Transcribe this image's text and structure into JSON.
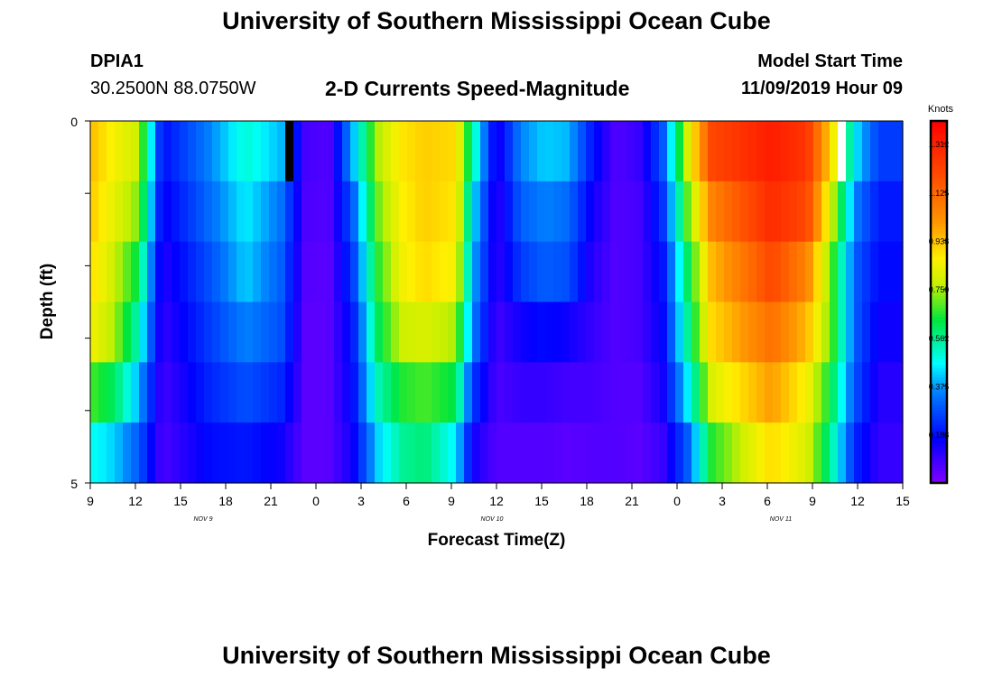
{
  "page": {
    "title_top": "University of Southern Mississippi Ocean Cube",
    "title_bottom": "University of Southern Mississippi Ocean Cube",
    "station_id": "DPIA1",
    "station_coords": "30.2500N 88.0750W",
    "plot_title": "2-D Currents Speed-Magnitude",
    "model_start_label": "Model Start Time",
    "model_start_value": "11/09/2019 Hour 09"
  },
  "chart_data": {
    "type": "heatmap",
    "title": "2-D Currents Speed-Magnitude",
    "xlabel": "Forecast Time(Z)",
    "ylabel": "Depth (ft)",
    "x_tick_labels": [
      "9",
      "12",
      "15",
      "18",
      "21",
      "0",
      "3",
      "6",
      "9",
      "12",
      "15",
      "18",
      "21",
      "0",
      "3",
      "6",
      "9",
      "12",
      "15"
    ],
    "date_labels": [
      {
        "text": "NOV  9",
        "at_tick": 2.5
      },
      {
        "text": "NOV  10",
        "at_tick": 8.9
      },
      {
        "text": "NOV  11",
        "at_tick": 15.3
      }
    ],
    "y_tick_labels": [
      "0",
      "5"
    ],
    "ylim": [
      0,
      5
    ],
    "colorbar": {
      "unit": "Knots",
      "min": 0,
      "max": 1.4,
      "tick_labels": [
        "1.312",
        "1.125",
        "0.938",
        "0.750",
        "0.562",
        "0.375",
        "0.188"
      ],
      "tick_values": [
        1.312,
        1.125,
        0.938,
        0.75,
        0.562,
        0.375,
        0.188
      ]
    },
    "depth_bands": 6,
    "knots": [
      {
        "t": 0,
        "v": [
          0.95,
          0.93,
          0.9,
          0.85,
          0.68,
          0.48
        ]
      },
      {
        "t": 1,
        "v": [
          0.85,
          0.82,
          0.78,
          0.75,
          0.6,
          0.42
        ]
      },
      {
        "t": 2,
        "v": [
          0.78,
          0.72,
          0.62,
          0.52,
          0.4,
          0.3
        ]
      },
      {
        "t": 3,
        "v": [
          0.18,
          0.15,
          0.12,
          0.1,
          0.08,
          0.07
        ]
      },
      {
        "t": 5,
        "v": [
          0.35,
          0.32,
          0.28,
          0.25,
          0.22,
          0.18
        ]
      },
      {
        "t": 6.5,
        "v": [
          0.5,
          0.45,
          0.42,
          0.35,
          0.28,
          0.2
        ]
      },
      {
        "t": 8,
        "v": [
          0.4,
          0.33,
          0.3,
          0.28,
          0.22,
          0.15
        ]
      },
      {
        "t": 9,
        "v": [
          0.08,
          0.07,
          0.06,
          0.05,
          0.05,
          0.05
        ]
      },
      {
        "t": 10,
        "v": [
          0.06,
          0.06,
          0.05,
          0.05,
          0.05,
          0.05
        ]
      },
      {
        "t": 11,
        "v": [
          0.4,
          0.3,
          0.25,
          0.2,
          0.18,
          0.15
        ]
      },
      {
        "t": 12,
        "v": [
          0.75,
          0.7,
          0.65,
          0.6,
          0.52,
          0.42
        ]
      },
      {
        "t": 13,
        "v": [
          0.88,
          0.86,
          0.84,
          0.78,
          0.65,
          0.55
        ]
      },
      {
        "t": 14,
        "v": [
          0.92,
          0.92,
          0.9,
          0.8,
          0.68,
          0.58
        ]
      },
      {
        "t": 15.3,
        "v": [
          0.9,
          0.88,
          0.85,
          0.75,
          0.62,
          0.45
        ]
      },
      {
        "t": 16,
        "v": [
          0.55,
          0.45,
          0.4,
          0.35,
          0.25,
          0.15
        ]
      },
      {
        "t": 17,
        "v": [
          0.12,
          0.1,
          0.1,
          0.08,
          0.07,
          0.06
        ]
      },
      {
        "t": 18,
        "v": [
          0.35,
          0.3,
          0.25,
          0.15,
          0.1,
          0.06
        ]
      },
      {
        "t": 19,
        "v": [
          0.42,
          0.35,
          0.3,
          0.18,
          0.1,
          0.06
        ]
      },
      {
        "t": 20,
        "v": [
          0.4,
          0.32,
          0.28,
          0.15,
          0.08,
          0.05
        ]
      },
      {
        "t": 21,
        "v": [
          0.2,
          0.15,
          0.12,
          0.1,
          0.08,
          0.06
        ]
      },
      {
        "t": 22,
        "v": [
          0.06,
          0.06,
          0.06,
          0.06,
          0.06,
          0.06
        ]
      },
      {
        "t": 23,
        "v": [
          0.1,
          0.08,
          0.08,
          0.08,
          0.06,
          0.05
        ]
      },
      {
        "t": 24,
        "v": [
          0.3,
          0.25,
          0.2,
          0.18,
          0.15,
          0.1
        ]
      },
      {
        "t": 25,
        "v": [
          0.8,
          0.7,
          0.6,
          0.55,
          0.45,
          0.3
        ]
      },
      {
        "t": 26,
        "v": [
          1.2,
          1.05,
          0.95,
          0.9,
          0.8,
          0.65
        ]
      },
      {
        "t": 28.5,
        "v": [
          1.32,
          1.28,
          1.2,
          1.1,
          1.0,
          0.9
        ]
      },
      {
        "t": 30,
        "v": [
          1.25,
          1.2,
          1.05,
          0.95,
          0.85,
          0.8
        ]
      },
      {
        "t": 31,
        "v": [
          0.9,
          0.8,
          0.7,
          0.7,
          0.62,
          0.55
        ]
      },
      {
        "t": 32,
        "v": [
          0.45,
          0.35,
          0.3,
          0.3,
          0.28,
          0.22
        ]
      },
      {
        "t": 33,
        "v": [
          0.25,
          0.2,
          0.18,
          0.15,
          0.12,
          0.1
        ]
      },
      {
        "t": 34,
        "v": [
          0.25,
          0.2,
          0.18,
          0.15,
          0.12,
          0.1
        ]
      }
    ],
    "column_overrides": [
      {
        "from": 8.15,
        "to": 8.6,
        "band": 0,
        "color": "#000000"
      },
      {
        "from": 31.15,
        "to": 31.55,
        "band": 0,
        "color": "#ffffff"
      }
    ]
  }
}
